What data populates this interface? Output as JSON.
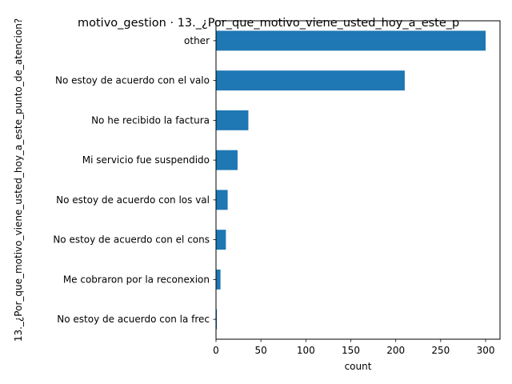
{
  "chart_data": {
    "type": "bar",
    "orientation": "horizontal",
    "title": "motivo_gestion · 13._¿Por_que_motivo_viene_usted_hoy_a_este_p",
    "xlabel": "count",
    "ylabel": "13._¿Por_que_motivo_viene_usted_hoy_a_este_punto_de_atencion?",
    "categories": [
      "other",
      "No estoy de acuerdo con el valo",
      "No he recibido la factura",
      "Mi servicio fue suspendido",
      "No estoy de acuerdo con los val",
      "No estoy de acuerdo con el cons",
      "Me cobraron por la reconexion",
      "No estoy de acuerdo con la frec"
    ],
    "values": [
      300,
      210,
      36,
      24,
      13,
      11,
      5,
      1
    ],
    "xlim": [
      0,
      316
    ],
    "xticks": [
      0,
      50,
      100,
      150,
      200,
      250,
      300
    ],
    "grid": false,
    "bar_color": "#1f77b4"
  }
}
